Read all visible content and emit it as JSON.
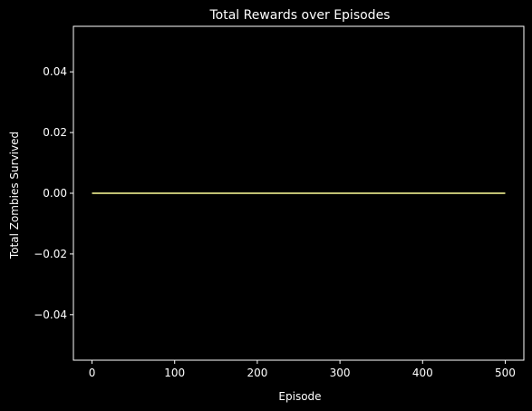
{
  "chart_data": {
    "type": "line",
    "title": "Total Rewards over Episodes",
    "xlabel": "Episode",
    "ylabel": "Total Zombies Survived",
    "xlim": [
      -22.5,
      522.5
    ],
    "ylim": [
      -0.055,
      0.055
    ],
    "x_ticks": [
      0,
      100,
      200,
      300,
      400,
      500
    ],
    "x_tick_labels": [
      "0",
      "100",
      "200",
      "300",
      "400",
      "500"
    ],
    "y_ticks": [
      0.04,
      0.02,
      0.0,
      -0.02,
      -0.04
    ],
    "y_tick_labels": [
      "0.04",
      "0.02",
      "0.00",
      "−0.02",
      "−0.04"
    ],
    "grid": false,
    "legend": "none",
    "series": [
      {
        "x": [
          0,
          500
        ],
        "values": [
          0,
          0
        ],
        "color": "#ffff99"
      }
    ]
  },
  "colors": {
    "background": "#000000",
    "axes": "#ffffff",
    "text": "#ffffff"
  }
}
